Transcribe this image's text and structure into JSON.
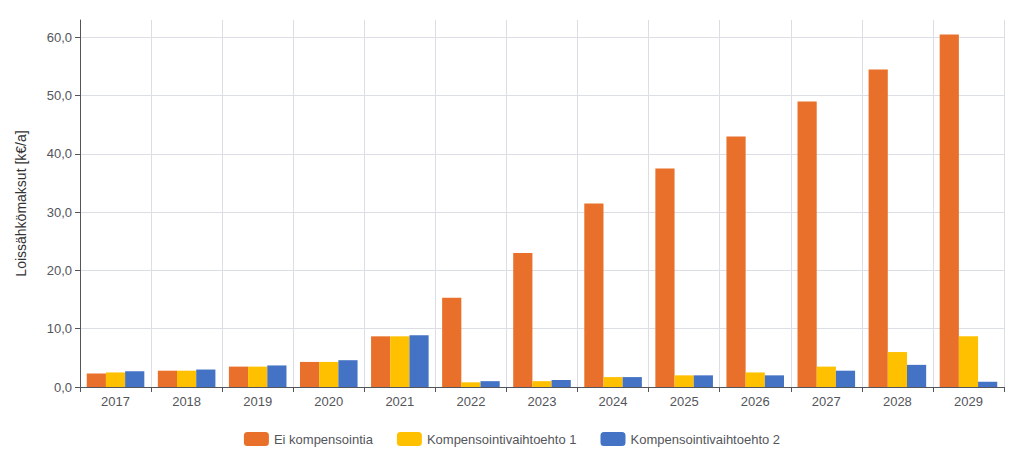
{
  "chart_data": {
    "type": "bar",
    "ylabel": "Loissähkömaksut [k€/a]",
    "categories": [
      "2017",
      "2018",
      "2019",
      "2020",
      "2021",
      "2022",
      "2023",
      "2024",
      "2025",
      "2026",
      "2027",
      "2028",
      "2029"
    ],
    "series": [
      {
        "name": "Ei kompensointia",
        "color": "#E8702A",
        "values": [
          2.3,
          2.8,
          3.5,
          4.3,
          8.7,
          15.3,
          23.0,
          31.5,
          37.5,
          43.0,
          49.0,
          54.5,
          60.5
        ]
      },
      {
        "name": "Kompensointivaihtoehto 1",
        "color": "#FFC000",
        "values": [
          2.5,
          2.8,
          3.5,
          4.3,
          8.7,
          0.8,
          1.0,
          1.7,
          2.0,
          2.5,
          3.5,
          6.0,
          8.7
        ]
      },
      {
        "name": "Kompensointivaihtoehto 2",
        "color": "#4472C4",
        "values": [
          2.7,
          3.0,
          3.7,
          4.6,
          8.9,
          1.0,
          1.2,
          1.7,
          2.0,
          2.0,
          2.8,
          3.8,
          0.9
        ]
      }
    ],
    "ylim": [
      0,
      63
    ],
    "yticks": [
      {
        "value": 0,
        "label": "0,0"
      },
      {
        "value": 10,
        "label": "10,0"
      },
      {
        "value": 20,
        "label": "20,0"
      },
      {
        "value": 30,
        "label": "30,0"
      },
      {
        "value": 40,
        "label": "40,0"
      },
      {
        "value": 50,
        "label": "50,0"
      },
      {
        "value": 60,
        "label": "60,0"
      }
    ],
    "grid": true,
    "legend": "bottom"
  }
}
